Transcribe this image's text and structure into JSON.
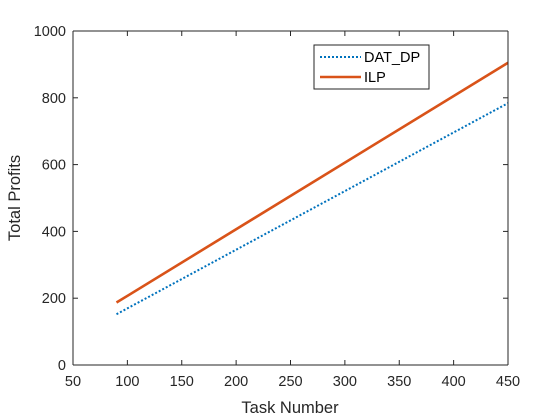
{
  "chart_data": {
    "type": "line",
    "title": "",
    "xlabel": "Task Number",
    "ylabel": "Total Profits",
    "xlim": [
      50,
      450
    ],
    "ylim": [
      0,
      1000
    ],
    "xticks": [
      50,
      100,
      150,
      200,
      250,
      300,
      350,
      400,
      450
    ],
    "yticks": [
      0,
      200,
      400,
      600,
      800,
      1000
    ],
    "grid": false,
    "legend_position": "top-right",
    "series": [
      {
        "name": "DAT_DP",
        "color": "#0072BD",
        "line_style": "dotted",
        "x": [
          90,
          450
        ],
        "y": [
          152,
          784
        ]
      },
      {
        "name": "ILP",
        "color": "#D95319",
        "line_style": "solid",
        "x": [
          90,
          450
        ],
        "y": [
          187,
          905
        ]
      }
    ]
  }
}
